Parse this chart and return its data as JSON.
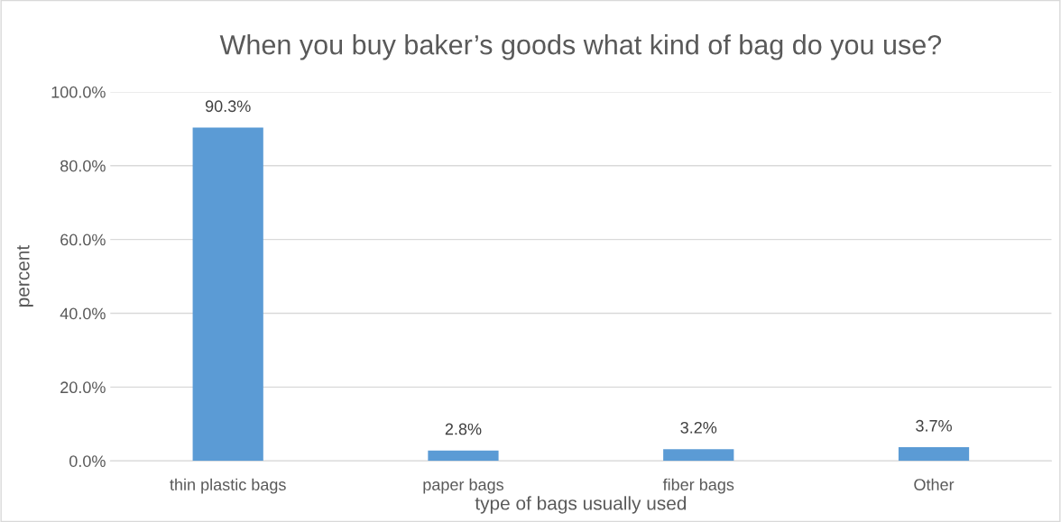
{
  "chart_data": {
    "type": "bar",
    "title": "When you buy baker’s goods what kind of bag do you use?",
    "xlabel": "type of bags usually used",
    "ylabel": "percent",
    "categories": [
      "thin plastic bags",
      "paper bags",
      "fiber bags",
      "Other"
    ],
    "values": [
      90.3,
      2.8,
      3.2,
      3.7
    ],
    "color": "#5b9bd5",
    "value_labels": [
      "90.3%",
      "2.8%",
      "3.2%",
      "3.7%"
    ],
    "ylim": [
      0,
      100
    ],
    "yticks": [
      {
        "value": 0,
        "label": "0.0%"
      },
      {
        "value": 20,
        "label": "20.0%"
      },
      {
        "value": 40,
        "label": "40.0%"
      },
      {
        "value": 60,
        "label": "60.0%"
      },
      {
        "value": 80,
        "label": "80.0%"
      },
      {
        "value": 100,
        "label": "100.0%"
      }
    ],
    "grid": "y",
    "legend": false
  }
}
